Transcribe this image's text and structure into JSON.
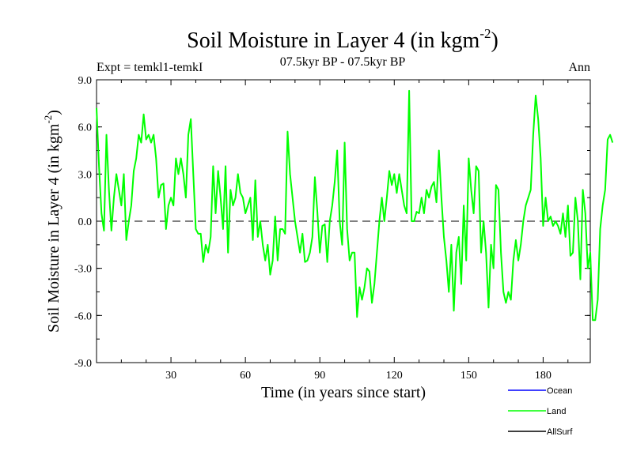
{
  "chart_data": {
    "type": "line",
    "title": "Soil Moisture in Layer 4 (in kgm",
    "title_sup": "-2",
    "title_close": ")",
    "subtitle_left": "Expt = temkl1-temkI",
    "subtitle_center": "07.5kyr BP - 07.5kyr BP",
    "subtitle_right": "Ann",
    "xlabel": "Time (in years since start)",
    "ylabel": "Soil Moisture in Layer 4 (in kgm",
    "ylabel_sup": "-2",
    "ylabel_close": ")",
    "xlim": [
      0,
      199
    ],
    "ylim": [
      -9,
      9
    ],
    "xticks": [
      30,
      60,
      90,
      120,
      150,
      180
    ],
    "xtick_labels": [
      "30",
      "60",
      "90",
      "120",
      "150",
      "180"
    ],
    "yticks": [
      -9,
      -6,
      -3,
      0,
      3,
      6,
      9
    ],
    "ytick_labels": [
      "-9.0",
      "-6.0",
      "-3.0",
      "0.0",
      "3.0",
      "6.0",
      "9.0"
    ],
    "zero_line": 0,
    "legend": [
      {
        "name": "Ocean",
        "color": "#0000ff"
      },
      {
        "name": "Land",
        "color": "#00ff00"
      },
      {
        "name": "AllSurf",
        "color": "#000000"
      }
    ],
    "series": [
      {
        "name": "Land",
        "color": "#00ff00",
        "x_start": 0,
        "x_step": 1,
        "values": [
          7.2,
          3.5,
          0.5,
          -0.6,
          5.5,
          2.0,
          -0.6,
          1.5,
          3.0,
          2.0,
          1.0,
          3.0,
          -1.2,
          0.0,
          1.0,
          3.2,
          4.0,
          5.5,
          5.0,
          6.8,
          5.2,
          5.5,
          5.0,
          5.5,
          4.0,
          1.5,
          2.3,
          2.4,
          -0.5,
          1.0,
          1.5,
          1.0,
          4.0,
          3.0,
          4.0,
          3.0,
          1.5,
          5.5,
          6.5,
          3.0,
          -0.5,
          -0.8,
          -0.8,
          -2.6,
          -1.5,
          -2.0,
          -1.0,
          3.5,
          0.5,
          3.2,
          1.5,
          -0.5,
          3.5,
          -2.0,
          2.0,
          1.0,
          1.5,
          3.0,
          1.8,
          1.5,
          0.5,
          1.0,
          1.5,
          -1.2,
          2.6,
          -1.0,
          0.0,
          -1.5,
          -2.5,
          -1.5,
          -3.4,
          -2.5,
          0.3,
          -2.5,
          -0.5,
          -0.5,
          -0.8,
          5.7,
          3.0,
          1.5,
          0.0,
          -1.0,
          -2.0,
          -0.8,
          -2.6,
          -2.5,
          -2.0,
          -1.0,
          2.8,
          0.6,
          -2.0,
          -0.3,
          -0.2,
          -2.6,
          0.0,
          1.0,
          2.5,
          4.5,
          0.0,
          -1.5,
          5.0,
          -0.5,
          -2.5,
          -2.0,
          -2.0,
          -6.1,
          -4.2,
          -5.0,
          -4.2,
          -3.0,
          -3.2,
          -5.2,
          -4.0,
          -2.0,
          0.0,
          1.5,
          0.0,
          1.5,
          3.2,
          2.3,
          3.0,
          1.8,
          3.0,
          2.0,
          1.0,
          0.5,
          8.3,
          0.0,
          0.0,
          0.6,
          0.5,
          1.5,
          0.5,
          2.0,
          1.5,
          2.2,
          2.5,
          1.2,
          4.5,
          1.5,
          -1.0,
          -2.5,
          -4.5,
          -1.5,
          -5.7,
          -2.0,
          -1.0,
          -4.0,
          1.0,
          -2.5,
          4.0,
          2.0,
          0.5,
          3.5,
          3.2,
          -2.0,
          0.0,
          -2.0,
          -5.5,
          -1.5,
          -3.0,
          2.3,
          2.0,
          -2.0,
          -4.5,
          -5.2,
          -4.5,
          -5.0,
          -2.5,
          -1.2,
          -2.5,
          -1.5,
          0.0,
          1.0,
          1.5,
          2.0,
          5.5,
          8.0,
          6.5,
          4.0,
          -0.3,
          1.5,
          0.0,
          0.3,
          -0.3,
          0.0,
          -0.3,
          -0.8,
          0.5,
          -1.0,
          1.0,
          -2.2,
          -2.0,
          1.5,
          0.0,
          -3.7,
          2.0,
          0.5,
          -3.0,
          -2.0,
          -6.3,
          -6.3,
          -5.0,
          -0.5,
          1.0,
          2.0,
          5.2,
          5.5,
          5.0
        ]
      }
    ]
  }
}
